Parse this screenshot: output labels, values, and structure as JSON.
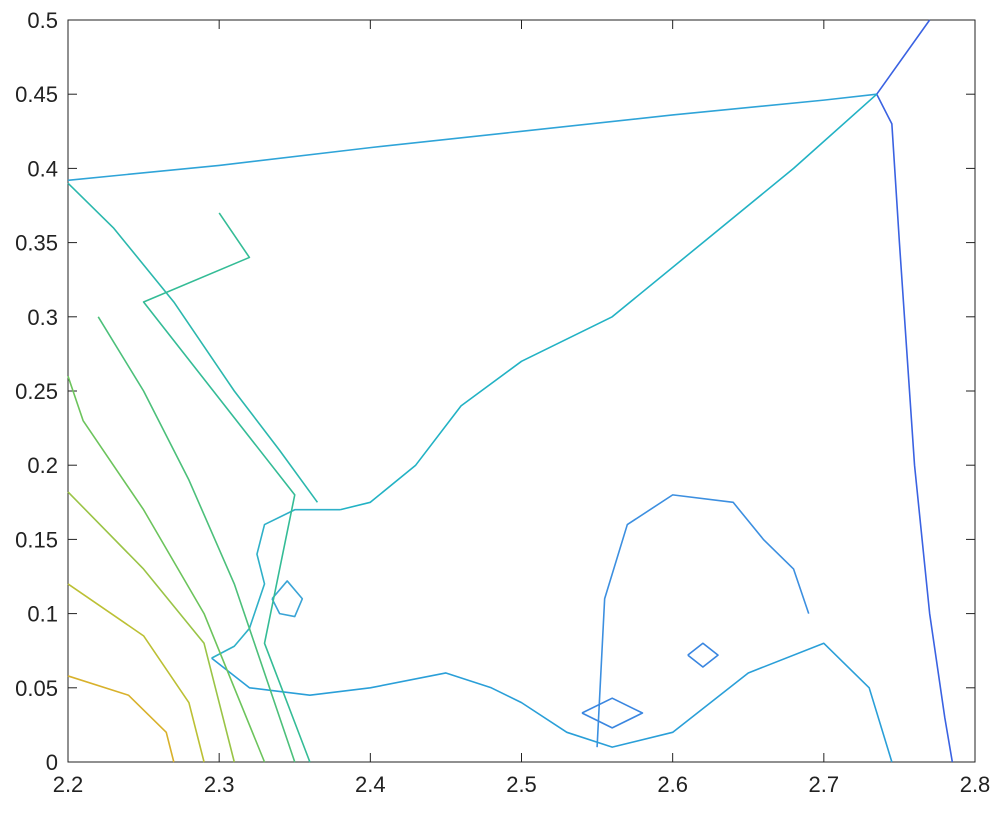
{
  "chart_data": {
    "type": "contour",
    "xlim": [
      2.2,
      2.8
    ],
    "xticks": [
      2.2,
      2.3,
      2.4,
      2.5,
      2.6,
      2.7,
      2.8
    ],
    "ylim": [
      0,
      0.5
    ],
    "yticks": [
      0,
      0.05,
      0.1,
      0.15,
      0.2,
      0.25,
      0.3,
      0.35,
      0.4,
      0.45,
      0.5
    ],
    "series": [
      {
        "color": "#2fa4d8",
        "x": [
          2.2,
          2.3,
          2.4,
          2.5,
          2.6,
          2.7,
          2.735
        ],
        "y": [
          0.392,
          0.402,
          0.414,
          0.425,
          0.436,
          0.446,
          0.45
        ]
      },
      {
        "color": "#3a62e2",
        "x": [
          2.77,
          2.735,
          2.745,
          2.75,
          2.76,
          2.77,
          2.78,
          2.785
        ],
        "y": [
          0.5,
          0.45,
          0.43,
          0.35,
          0.2,
          0.1,
          0.03,
          0
        ]
      },
      {
        "color": "#2bb8ad",
        "x": [
          2.2,
          2.23,
          2.27,
          2.31,
          2.34,
          2.365
        ],
        "y": [
          0.39,
          0.36,
          0.31,
          0.25,
          0.21,
          0.175
        ]
      },
      {
        "color": "#22b2c4",
        "x": [
          2.735,
          2.68,
          2.62,
          2.56,
          2.5,
          2.46,
          2.43,
          2.4,
          2.38
        ],
        "y": [
          0.45,
          0.4,
          0.35,
          0.3,
          0.27,
          0.24,
          0.2,
          0.175,
          0.17
        ]
      },
      {
        "color": "#3c8fe0",
        "x": [
          2.55,
          2.555,
          2.57,
          2.6,
          2.64,
          2.66,
          2.68,
          2.69
        ],
        "y": [
          0.01,
          0.11,
          0.16,
          0.18,
          0.175,
          0.15,
          0.13,
          0.1
        ]
      },
      {
        "color": "#2a9fd8",
        "x": [
          2.295,
          2.32,
          2.36,
          2.4,
          2.45,
          2.48,
          2.5,
          2.53,
          2.56,
          2.6,
          2.65,
          2.7,
          2.73,
          2.745
        ],
        "y": [
          0.07,
          0.05,
          0.045,
          0.05,
          0.06,
          0.05,
          0.04,
          0.02,
          0.01,
          0.02,
          0.06,
          0.08,
          0.05,
          0
        ]
      },
      {
        "color": "#2fb0c8",
        "x": [
          2.295,
          2.31,
          2.32,
          2.33,
          2.325,
          2.33,
          2.35,
          2.365,
          2.38
        ],
        "y": [
          0.07,
          0.078,
          0.09,
          0.12,
          0.14,
          0.16,
          0.17,
          0.17,
          0.17
        ]
      },
      {
        "color": "#3aa4d6",
        "x": [
          2.335,
          2.345,
          2.355,
          2.35,
          2.34,
          2.335
        ],
        "y": [
          0.11,
          0.122,
          0.11,
          0.098,
          0.1,
          0.11
        ]
      },
      {
        "color": "#3a86e0",
        "x": [
          2.61,
          2.62,
          2.63,
          2.62,
          2.61
        ],
        "y": [
          0.072,
          0.08,
          0.072,
          0.064,
          0.072
        ]
      },
      {
        "color": "#3a86e0",
        "x": [
          2.54,
          2.56,
          2.58,
          2.56,
          2.54
        ],
        "y": [
          0.033,
          0.043,
          0.033,
          0.023,
          0.033
        ]
      },
      {
        "color": "#d8b12b",
        "x": [
          2.2,
          2.24,
          2.265,
          2.27
        ],
        "y": [
          0.058,
          0.045,
          0.02,
          0
        ]
      },
      {
        "color": "#bcc034",
        "x": [
          2.2,
          2.25,
          2.28,
          2.29
        ],
        "y": [
          0.12,
          0.085,
          0.04,
          0
        ]
      },
      {
        "color": "#9ac446",
        "x": [
          2.2,
          2.25,
          2.29,
          2.3,
          2.31
        ],
        "y": [
          0.182,
          0.13,
          0.08,
          0.04,
          0
        ]
      },
      {
        "color": "#6cc45c",
        "x": [
          2.2,
          2.21,
          2.25,
          2.29,
          2.31,
          2.33
        ],
        "y": [
          0.26,
          0.23,
          0.17,
          0.1,
          0.05,
          0
        ]
      },
      {
        "color": "#4cc07a",
        "x": [
          2.22,
          2.25,
          2.28,
          2.31,
          2.33,
          2.35
        ],
        "y": [
          0.3,
          0.25,
          0.19,
          0.12,
          0.06,
          0
        ]
      },
      {
        "color": "#34bc96",
        "x": [
          2.3,
          2.32,
          2.25,
          2.35,
          2.33,
          2.36
        ],
        "y": [
          0.37,
          0.34,
          0.31,
          0.18,
          0.08,
          0
        ]
      }
    ]
  }
}
